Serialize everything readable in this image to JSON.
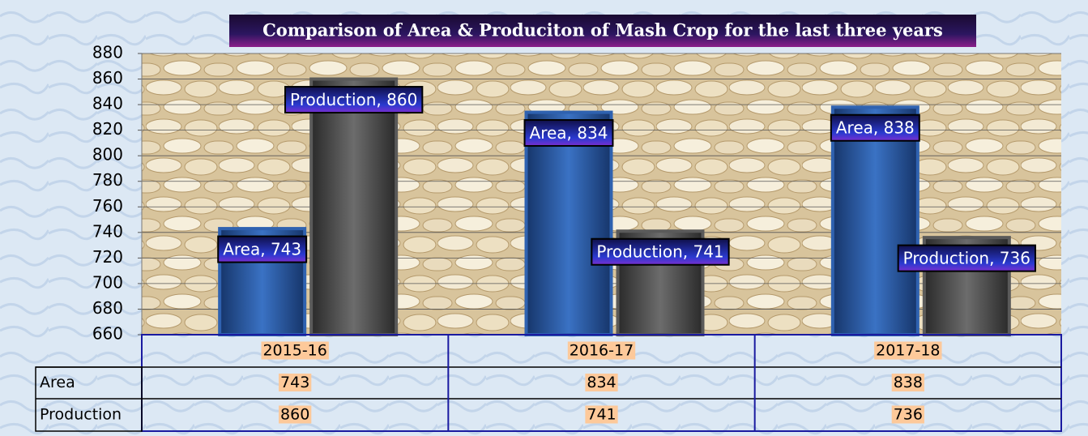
{
  "chart_data": {
    "type": "bar",
    "title": "Comparison of Area & Produciton of Mash Crop for the last three years",
    "categories": [
      "2015-16",
      "2016-17",
      "2017-18"
    ],
    "series": [
      {
        "name": "Area",
        "color": "#2f62b0",
        "values": [
          743,
          834,
          838
        ],
        "value_labels": [
          "Area, 743",
          "Area, 834",
          "Area, 838"
        ]
      },
      {
        "name": "Production",
        "color": "#5a5a5a",
        "values": [
          860,
          741,
          736
        ],
        "value_labels": [
          "Production, 860",
          "Production, 741",
          "Production, 736"
        ]
      }
    ],
    "ylim": [
      660,
      880
    ],
    "yticks": [
      660,
      680,
      700,
      720,
      740,
      760,
      780,
      800,
      820,
      840,
      860,
      880
    ],
    "grid": true,
    "data_table": true
  }
}
